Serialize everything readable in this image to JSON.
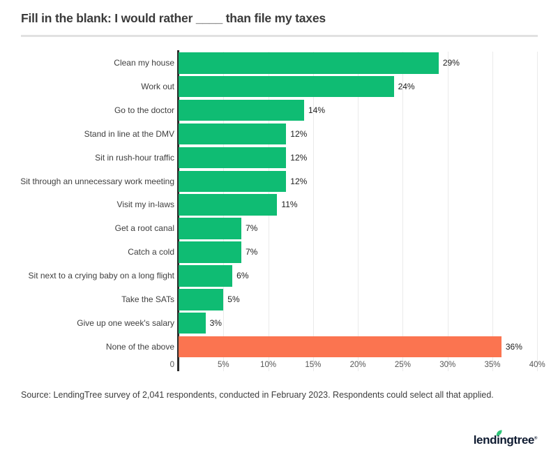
{
  "title": "Fill in the blank: I would rather ____ than file my taxes",
  "chart_data": {
    "type": "bar",
    "orientation": "horizontal",
    "title": "Fill in the blank: I would rather ____ than file my taxes",
    "categories": [
      "Clean my house",
      "Work out",
      "Go to the doctor",
      "Stand in line at the DMV",
      "Sit in rush-hour traffic",
      "Sit through an unnecessary work meeting",
      "Visit my in-laws",
      "Get a root canal",
      "Catch a cold",
      "Sit next to a crying baby on a long flight",
      "Take the SATs",
      "Give up one week's salary",
      "None of the above"
    ],
    "values": [
      29,
      24,
      14,
      12,
      12,
      12,
      11,
      7,
      7,
      6,
      5,
      3,
      36
    ],
    "value_labels": [
      "29%",
      "24%",
      "14%",
      "12%",
      "12%",
      "12%",
      "11%",
      "7%",
      "7%",
      "6%",
      "5%",
      "3%",
      "36%"
    ],
    "highlight_index": 12,
    "xlabel": "",
    "ylabel": "",
    "xlim": [
      0,
      40
    ],
    "x_ticks": [
      {
        "label": "0",
        "value": 0
      },
      {
        "label": "5%",
        "value": 5
      },
      {
        "label": "10%",
        "value": 10
      },
      {
        "label": "15%",
        "value": 15
      },
      {
        "label": "20%",
        "value": 20
      },
      {
        "label": "25%",
        "value": 25
      },
      {
        "label": "30%",
        "value": 30
      },
      {
        "label": "35%",
        "value": 35
      },
      {
        "label": "40%",
        "value": 40
      }
    ],
    "grid": "vertical",
    "legend": "none"
  },
  "colors": {
    "bar_green": "#0fbc73",
    "bar_orange": "#fb7450",
    "leaf_green": "#2ec478",
    "axis_line": "#2b2b2b",
    "gridline": "#eaeaea",
    "logo_navy": "#0f1b31"
  },
  "source": "Source: LendingTree survey of 2,041 respondents, conducted in February 2023. Respondents could select all that applied.",
  "logo": {
    "text": "lendingtree",
    "registered": "®",
    "leaf_icon": "leaf-icon"
  }
}
